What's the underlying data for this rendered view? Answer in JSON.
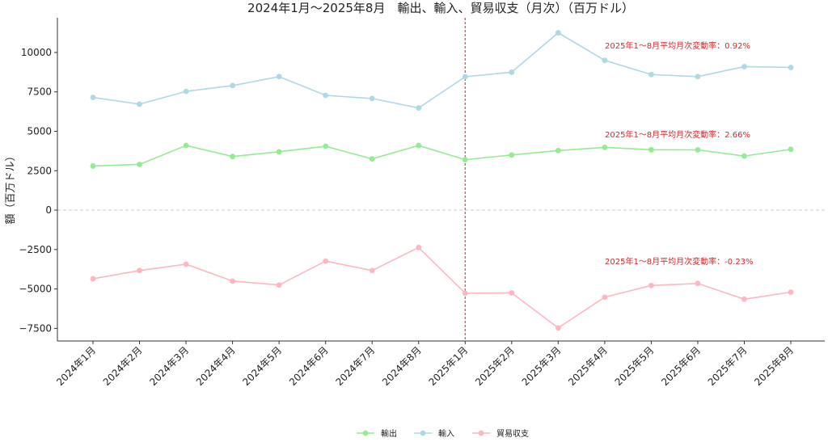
{
  "chart_data": {
    "type": "line",
    "title": "2024年1月～2025年8月　輸出、輸入、貿易収支（月次）（百万ドル）",
    "xlabel": "",
    "ylabel": "額（百万ドル）",
    "categories": [
      "2024年1月",
      "2024年2月",
      "2024年3月",
      "2024年4月",
      "2024年5月",
      "2024年6月",
      "2024年7月",
      "2024年8月",
      "2025年1月",
      "2025年2月",
      "2025年3月",
      "2025年4月",
      "2025年5月",
      "2025年6月",
      "2025年7月",
      "2025年8月"
    ],
    "ylim": [
      -8300,
      12200
    ],
    "yticks": [
      "−7500",
      "−5000",
      "−2500",
      "0",
      "2500",
      "5000",
      "7500",
      "10000"
    ],
    "ytick_values": [
      -7500,
      -5000,
      -2500,
      0,
      2500,
      5000,
      7500,
      10000
    ],
    "vertical_marker": {
      "category": "2025年1月",
      "color": "#d62728"
    },
    "zero_line": true,
    "legend_position": "bottom-center",
    "series": [
      {
        "name": "輸出",
        "color": "#90ee90",
        "values": [
          2800,
          2900,
          4100,
          3400,
          3700,
          4050,
          3250,
          4100,
          3200,
          3500,
          3780,
          3980,
          3830,
          3820,
          3430,
          3860
        ],
        "annotation": "2025年1～8月平均月次変動率：2.66%"
      },
      {
        "name": "輸入",
        "color": "#add8e6",
        "values": [
          7150,
          6720,
          7530,
          7900,
          8470,
          7280,
          7080,
          6480,
          8460,
          8750,
          11250,
          9500,
          8600,
          8470,
          9100,
          9050
        ],
        "annotation": "2025年1～8月平均月次変動率：0.92%"
      },
      {
        "name": "貿易収支",
        "color": "#ffb6c1",
        "values": [
          -4350,
          -3830,
          -3430,
          -4500,
          -4750,
          -3230,
          -3830,
          -2370,
          -5270,
          -5250,
          -7470,
          -5520,
          -4780,
          -4650,
          -5650,
          -5200
        ],
        "annotation": "2025年1～8月平均月次変動率：-0.23%"
      }
    ]
  }
}
